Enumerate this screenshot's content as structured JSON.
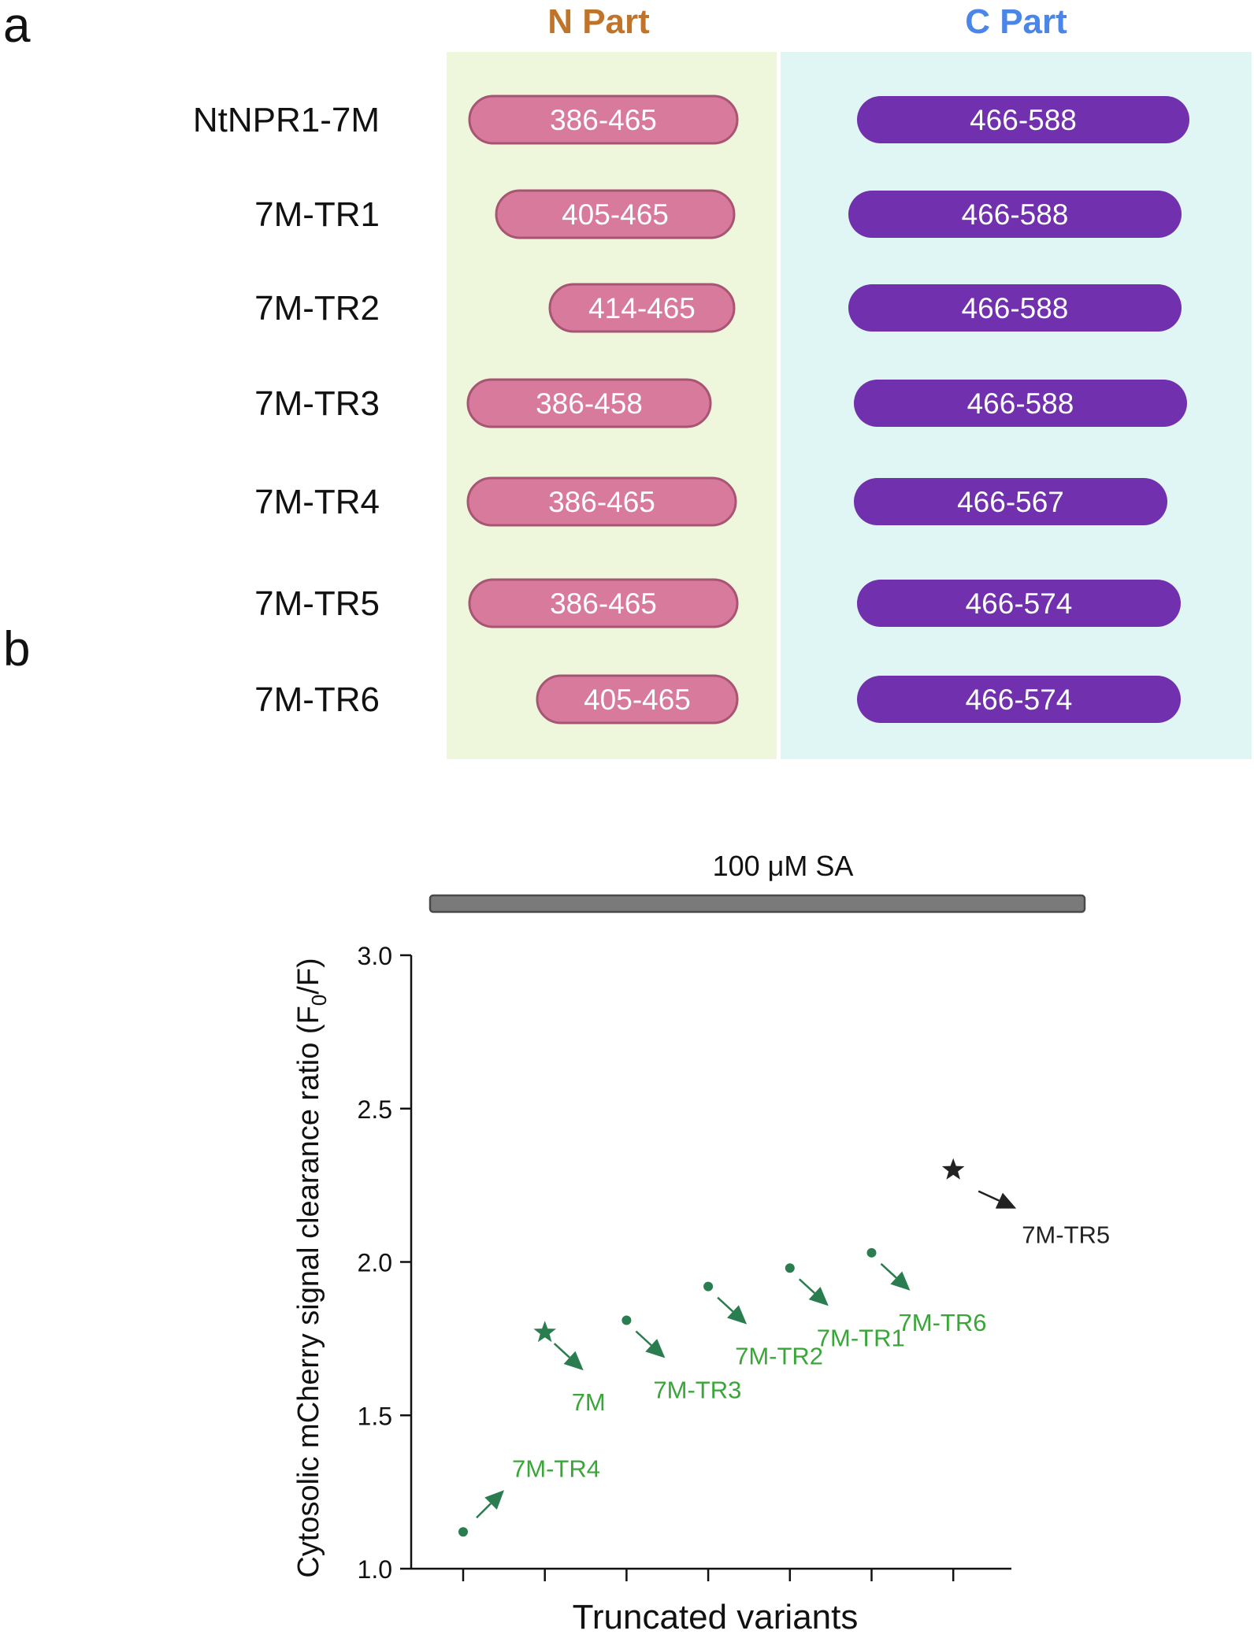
{
  "panel_a": {
    "letter": "a",
    "n_part": {
      "title": "N Part",
      "title_color": "#c0742a",
      "bg": "#eef7dc"
    },
    "c_part": {
      "title": "C Part",
      "title_color": "#4a86e8",
      "bg": "#e0f6f4"
    },
    "n_color": "#d77a9b",
    "n_border": "#a85473",
    "c_color": "#7130ad",
    "rows": [
      {
        "label": "NtNPR1-7M",
        "n": "386-465",
        "c": "466-588"
      },
      {
        "label": "7M-TR1",
        "n": "405-465",
        "c": "466-588"
      },
      {
        "label": "7M-TR2",
        "n": "414-465",
        "c": "466-588"
      },
      {
        "label": "7M-TR3",
        "n": "386-458",
        "c": "466-588"
      },
      {
        "label": "7M-TR4",
        "n": "386-465",
        "c": "466-567"
      },
      {
        "label": "7M-TR5",
        "n": "386-465",
        "c": "466-574"
      },
      {
        "label": "7M-TR6",
        "n": "405-465",
        "c": "466-574"
      }
    ]
  },
  "panel_b": {
    "letter": "b",
    "treatment_label": "100 μM SA"
  },
  "chart_data": {
    "type": "scatter",
    "title": "",
    "xlabel": "Truncated variants",
    "ylabel_main": "Cytosolic mCherry signal clearance ratio (F",
    "ylabel_sub": "0",
    "ylabel_end": "/F)",
    "ylim": [
      1.0,
      3.0
    ],
    "yticks": [
      "1.0",
      "1.5",
      "2.0",
      "2.5",
      "3.0"
    ],
    "xtick_count": 7,
    "green": "#2a7d4f",
    "label_green": "#3aa63a",
    "black": "#222222",
    "points": [
      {
        "name": "7M-TR4",
        "x": 1,
        "y": 1.12,
        "marker": "dot",
        "color": "green",
        "arrow": "up"
      },
      {
        "name": "7M",
        "x": 2,
        "y": 1.77,
        "marker": "star",
        "color": "green",
        "arrow": "down"
      },
      {
        "name": "7M-TR3",
        "x": 3,
        "y": 1.81,
        "marker": "dot",
        "color": "green",
        "arrow": "down"
      },
      {
        "name": "7M-TR2",
        "x": 4,
        "y": 1.92,
        "marker": "dot",
        "color": "green",
        "arrow": "down"
      },
      {
        "name": "7M-TR1",
        "x": 5,
        "y": 1.98,
        "marker": "dot",
        "color": "green",
        "arrow": "down"
      },
      {
        "name": "7M-TR6",
        "x": 6,
        "y": 2.03,
        "marker": "dot",
        "color": "green",
        "arrow": "down"
      },
      {
        "name": "7M-TR5",
        "x": 7,
        "y": 2.3,
        "marker": "star",
        "color": "black",
        "arrow": "down"
      }
    ]
  }
}
